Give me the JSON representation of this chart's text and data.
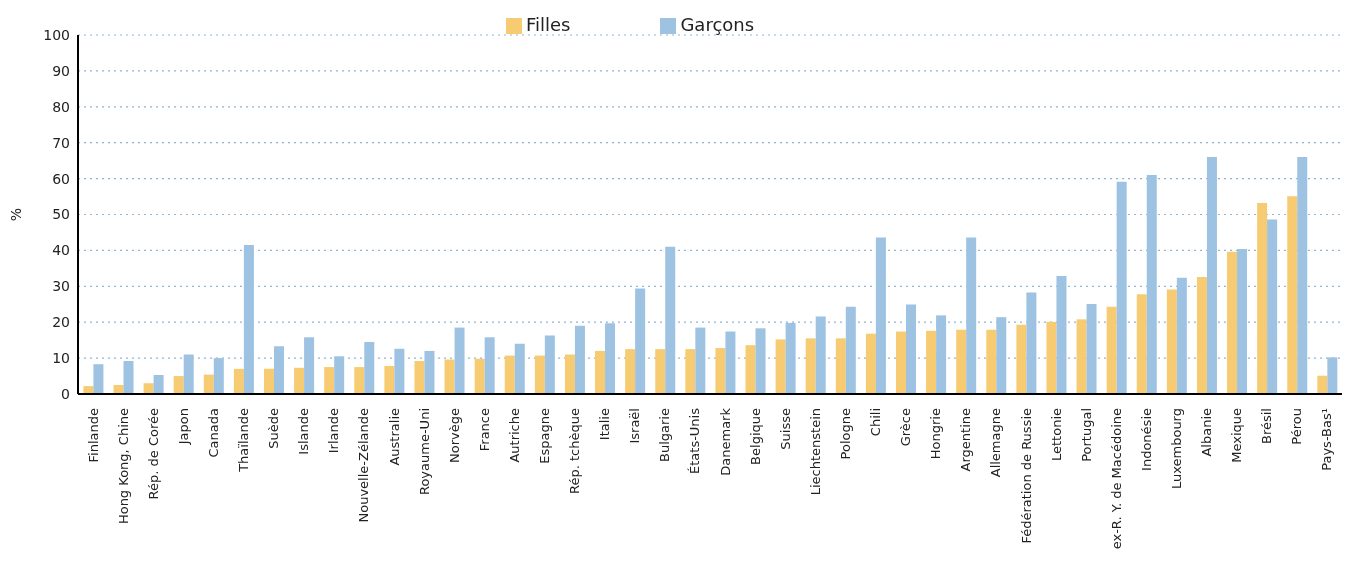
{
  "chart_data": {
    "type": "bar",
    "ylabel": "%",
    "categories": [
      "Finlande",
      "Hong Kong, Chine",
      "Rép. de Corée",
      "Japon",
      "Canada",
      "Thaïlande",
      "Suède",
      "Islande",
      "Irlande",
      "Nouvelle-Zélande",
      "Australie",
      "Royaume-Uni",
      "Norvège",
      "France",
      "Autriche",
      "Espagne",
      "Rép. tchèque",
      "Italie",
      "Israël",
      "Bulgarie",
      "États-Unis",
      "Danemark",
      "Belgique",
      "Suisse",
      "Liechtenstein",
      "Pologne",
      "Chili",
      "Grèce",
      "Hongrie",
      "Argentine",
      "Allemagne",
      "Fédération de Russie",
      "Lettonie",
      "Portugal",
      "ex-R. Y. de Macédoine",
      "Indonésie",
      "Luxembourg",
      "Albanie",
      "Mexique",
      "Brésil",
      "Pérou",
      "Pays-Bas¹"
    ],
    "series": [
      {
        "name": "Filles",
        "color": "#f6cb71",
        "values": [
          2.2,
          2.5,
          3,
          5,
          5.4,
          7,
          7,
          7.3,
          7.5,
          7.5,
          7.8,
          9.2,
          9.6,
          9.8,
          10.7,
          10.7,
          11,
          12,
          12.5,
          12.5,
          12.5,
          12.8,
          13.6,
          15.2,
          15.5,
          15.5,
          16.8,
          17.4,
          17.6,
          17.9,
          17.9,
          19.3,
          20.1,
          20.8,
          24.3,
          27.8,
          29.1,
          32.6,
          39.6,
          53.2,
          55.1,
          5.1
        ]
      },
      {
        "name": "Garçons",
        "color": "#9dc2e2",
        "values": [
          8.3,
          9.2,
          5.3,
          11,
          10,
          41.5,
          13.3,
          15.8,
          10.5,
          14.5,
          12.6,
          12,
          18.5,
          15.8,
          14,
          16.3,
          19,
          19.7,
          29.4,
          41,
          18.5,
          17.4,
          18.3,
          19.8,
          21.6,
          24.3,
          43.6,
          24.9,
          21.9,
          43.6,
          21.4,
          28.3,
          32.9,
          25.1,
          59.1,
          61,
          32.4,
          66,
          40.4,
          48.6,
          66,
          10.2
        ]
      }
    ],
    "ylim": [
      0,
      100
    ],
    "yticks": [
      0,
      10,
      20,
      30,
      40,
      50,
      60,
      70,
      80,
      90,
      100
    ],
    "grid": "y",
    "legend": "top"
  }
}
